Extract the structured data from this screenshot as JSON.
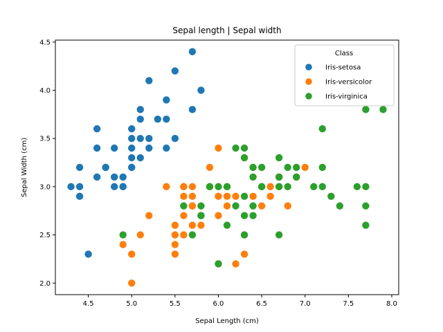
{
  "chart_data": {
    "type": "scatter",
    "title": "Sepal length | Sepal width",
    "xlabel": "Sepal Length (cm)",
    "ylabel": "Sepal Width (cm)",
    "xlim": [
      4.12,
      8.08
    ],
    "ylim": [
      1.88,
      4.52
    ],
    "xticks": [
      "4.5",
      "5.0",
      "5.5",
      "6.0",
      "6.5",
      "7.0",
      "7.5",
      "8.0"
    ],
    "yticks": [
      "2.0",
      "2.5",
      "3.0",
      "3.5",
      "4.0",
      "4.5"
    ],
    "grid": false,
    "legend": {
      "title": "Class",
      "placement": "top-right"
    },
    "series": [
      {
        "name": "Iris-setosa",
        "color": "#1f77b4",
        "points": [
          [
            5.1,
            3.5
          ],
          [
            4.9,
            3.0
          ],
          [
            4.7,
            3.2
          ],
          [
            4.6,
            3.1
          ],
          [
            5.0,
            3.6
          ],
          [
            5.4,
            3.9
          ],
          [
            4.6,
            3.4
          ],
          [
            5.0,
            3.4
          ],
          [
            4.4,
            2.9
          ],
          [
            4.9,
            3.1
          ],
          [
            5.4,
            3.7
          ],
          [
            4.8,
            3.4
          ],
          [
            4.8,
            3.0
          ],
          [
            4.3,
            3.0
          ],
          [
            5.8,
            4.0
          ],
          [
            5.7,
            4.4
          ],
          [
            5.1,
            3.8
          ],
          [
            5.7,
            3.8
          ],
          [
            5.2,
            3.4
          ],
          [
            5.1,
            3.7
          ],
          [
            4.6,
            3.6
          ],
          [
            5.1,
            3.3
          ],
          [
            5.0,
            3.5
          ],
          [
            5.2,
            3.5
          ],
          [
            4.7,
            3.2
          ],
          [
            4.8,
            3.1
          ],
          [
            5.2,
            4.1
          ],
          [
            5.5,
            4.2
          ],
          [
            5.0,
            3.2
          ],
          [
            5.5,
            3.5
          ],
          [
            4.4,
            3.0
          ],
          [
            4.5,
            2.3
          ],
          [
            4.4,
            3.2
          ],
          [
            5.0,
            3.2
          ],
          [
            5.3,
            3.7
          ],
          [
            5.0,
            3.3
          ],
          [
            4.9,
            3.0
          ],
          [
            5.4,
            3.4
          ]
        ]
      },
      {
        "name": "Iris-versicolor",
        "color": "#ff7f0e",
        "points": [
          [
            7.0,
            3.2
          ],
          [
            6.4,
            3.2
          ],
          [
            6.9,
            3.1
          ],
          [
            5.5,
            2.3
          ],
          [
            6.5,
            2.8
          ],
          [
            5.7,
            2.8
          ],
          [
            6.3,
            3.3
          ],
          [
            4.9,
            2.4
          ],
          [
            6.6,
            2.9
          ],
          [
            5.2,
            2.7
          ],
          [
            5.0,
            2.0
          ],
          [
            5.9,
            3.0
          ],
          [
            6.0,
            2.2
          ],
          [
            6.1,
            2.9
          ],
          [
            5.6,
            2.9
          ],
          [
            6.7,
            3.1
          ],
          [
            5.6,
            3.0
          ],
          [
            5.8,
            2.7
          ],
          [
            6.2,
            2.2
          ],
          [
            5.6,
            2.5
          ],
          [
            5.9,
            3.2
          ],
          [
            6.1,
            2.8
          ],
          [
            6.3,
            2.5
          ],
          [
            6.4,
            2.9
          ],
          [
            6.6,
            3.0
          ],
          [
            6.8,
            2.8
          ],
          [
            6.7,
            3.0
          ],
          [
            6.0,
            2.9
          ],
          [
            5.7,
            2.6
          ],
          [
            5.5,
            2.4
          ],
          [
            5.8,
            2.7
          ],
          [
            6.0,
            2.7
          ],
          [
            5.4,
            3.0
          ],
          [
            6.0,
            3.4
          ],
          [
            6.7,
            3.1
          ],
          [
            6.3,
            2.3
          ],
          [
            5.6,
            3.0
          ],
          [
            5.5,
            2.5
          ],
          [
            5.5,
            2.6
          ],
          [
            6.1,
            3.0
          ],
          [
            5.8,
            2.6
          ],
          [
            5.0,
            2.3
          ],
          [
            5.6,
            2.7
          ],
          [
            5.7,
            3.0
          ],
          [
            5.7,
            2.9
          ],
          [
            6.2,
            2.9
          ],
          [
            5.1,
            2.5
          ],
          [
            5.7,
            2.8
          ]
        ]
      },
      {
        "name": "Iris-virginica",
        "color": "#2ca02c",
        "points": [
          [
            6.3,
            3.3
          ],
          [
            5.8,
            2.7
          ],
          [
            7.1,
            3.0
          ],
          [
            6.3,
            2.9
          ],
          [
            6.5,
            3.0
          ],
          [
            7.6,
            3.0
          ],
          [
            4.9,
            2.5
          ],
          [
            7.3,
            2.9
          ],
          [
            6.7,
            2.5
          ],
          [
            7.2,
            3.6
          ],
          [
            6.5,
            3.2
          ],
          [
            6.4,
            2.7
          ],
          [
            6.8,
            3.0
          ],
          [
            5.7,
            2.5
          ],
          [
            5.8,
            2.8
          ],
          [
            6.4,
            3.2
          ],
          [
            7.7,
            3.8
          ],
          [
            7.7,
            2.6
          ],
          [
            6.0,
            2.2
          ],
          [
            6.9,
            3.2
          ],
          [
            5.6,
            2.8
          ],
          [
            7.7,
            2.8
          ],
          [
            6.3,
            2.7
          ],
          [
            6.7,
            3.3
          ],
          [
            7.2,
            3.2
          ],
          [
            6.2,
            2.8
          ],
          [
            6.1,
            3.0
          ],
          [
            6.4,
            2.8
          ],
          [
            7.2,
            3.0
          ],
          [
            7.4,
            2.8
          ],
          [
            7.9,
            3.8
          ],
          [
            6.1,
            2.6
          ],
          [
            7.7,
            3.0
          ],
          [
            6.3,
            3.4
          ],
          [
            6.4,
            3.1
          ],
          [
            6.0,
            3.0
          ],
          [
            6.9,
            3.1
          ],
          [
            6.7,
            3.1
          ],
          [
            5.8,
            2.7
          ],
          [
            6.8,
            3.2
          ],
          [
            6.7,
            3.0
          ],
          [
            6.3,
            2.5
          ],
          [
            6.5,
            3.0
          ],
          [
            6.2,
            3.4
          ],
          [
            5.9,
            3.0
          ]
        ]
      }
    ]
  }
}
